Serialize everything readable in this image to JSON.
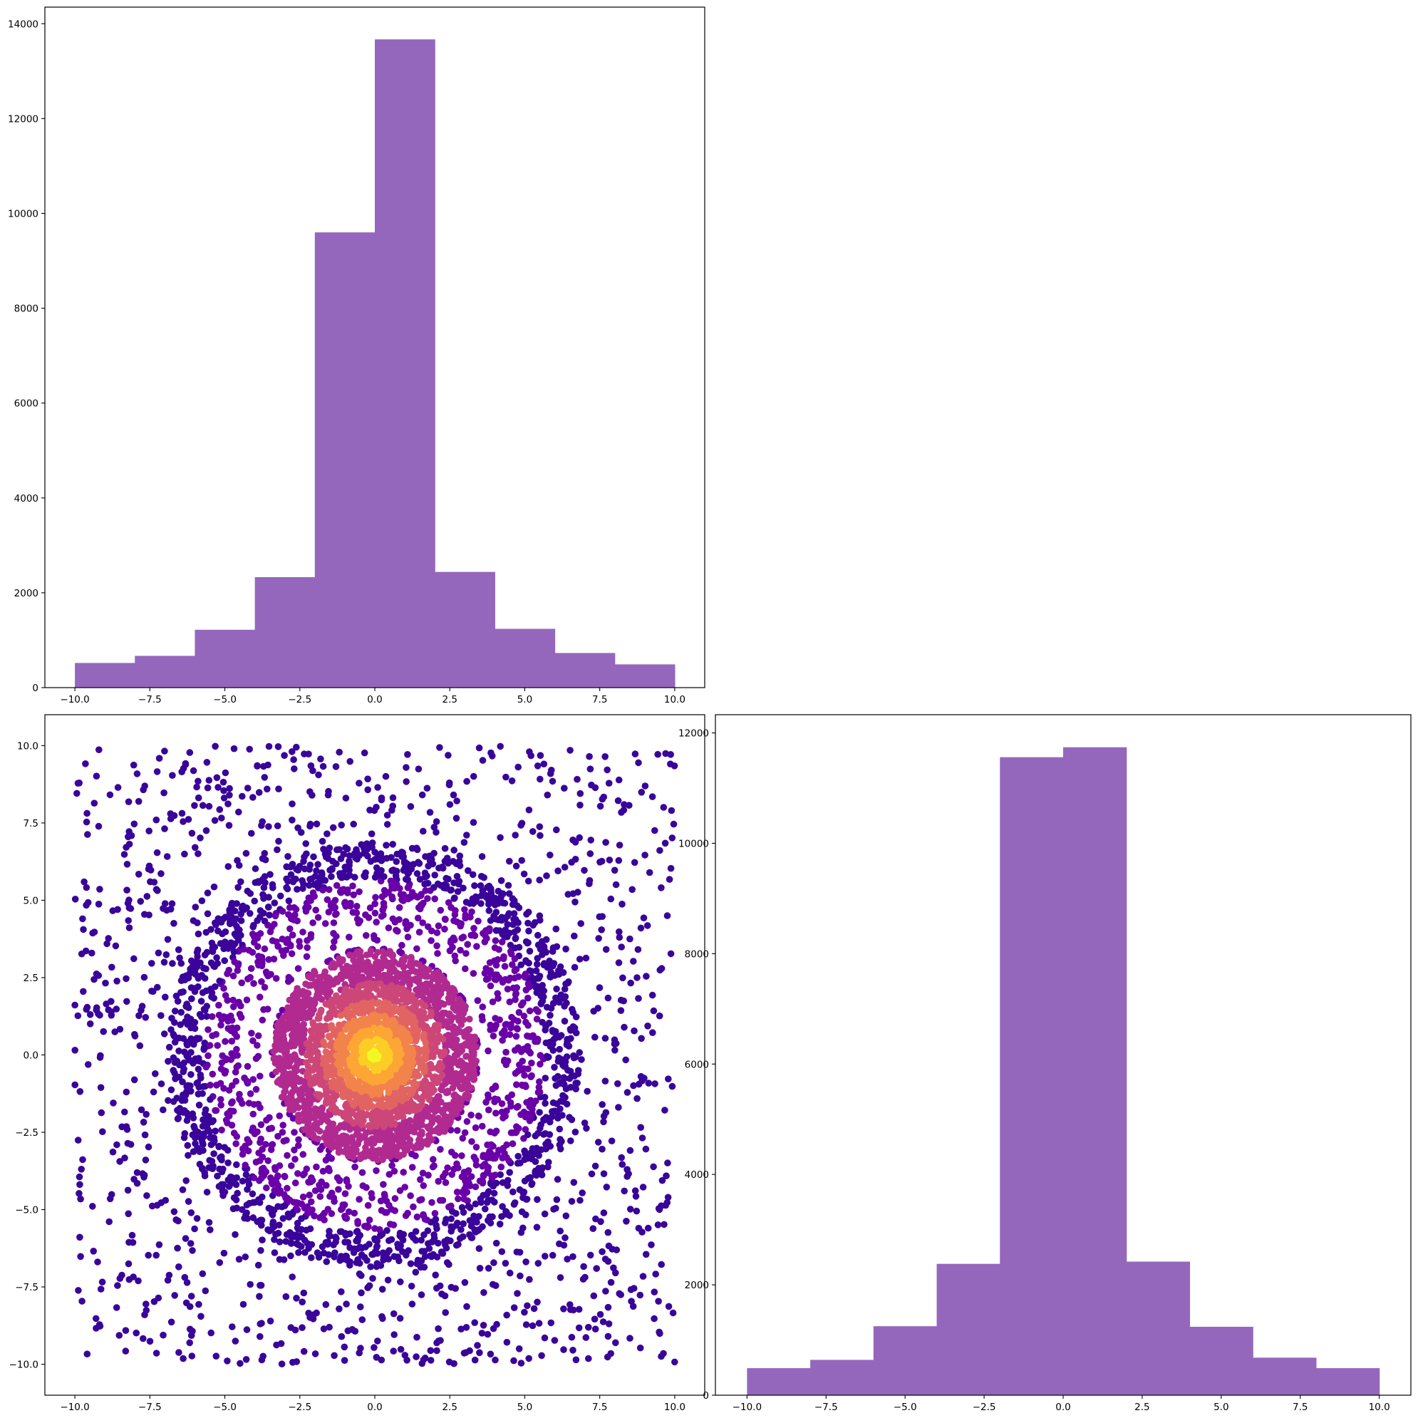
{
  "figure": {
    "background": "#ffffff"
  },
  "chart_data": [
    {
      "id": "hist_x",
      "type": "bar",
      "panel": "top-left",
      "title": "",
      "xlabel": "",
      "ylabel": "",
      "bar_color": "#9467bd",
      "bin_edges": [
        -10,
        -8,
        -6,
        -4,
        -2,
        0,
        2,
        4,
        6,
        8,
        10
      ],
      "values": [
        520,
        670,
        1220,
        2330,
        9600,
        13670,
        2440,
        1240,
        730,
        490
      ],
      "xlim": [
        -11,
        11
      ],
      "ylim": [
        0,
        14350
      ],
      "xticks": [
        -10,
        -7.5,
        -5,
        -2.5,
        0,
        2.5,
        5,
        7.5,
        10
      ],
      "xtick_labels": [
        "−10.0",
        "−7.5",
        "−5.0",
        "−2.5",
        "0.0",
        "2.5",
        "5.0",
        "7.5",
        "10.0"
      ],
      "yticks": [
        0,
        2000,
        4000,
        6000,
        8000,
        10000,
        12000,
        14000
      ],
      "ytick_labels": [
        "0",
        "2000",
        "4000",
        "6000",
        "8000",
        "10000",
        "12000",
        "14000"
      ],
      "grid": false
    },
    {
      "id": "hist_y",
      "type": "bar",
      "panel": "bottom-right",
      "title": "",
      "xlabel": "",
      "ylabel": "",
      "bar_color": "#9467bd",
      "bin_edges": [
        -10,
        -8,
        -6,
        -4,
        -2,
        0,
        2,
        4,
        6,
        8,
        10
      ],
      "values": [
        490,
        640,
        1250,
        2380,
        11560,
        11740,
        2420,
        1240,
        680,
        490
      ],
      "xlim": [
        -11,
        11
      ],
      "ylim": [
        0,
        12330
      ],
      "xticks": [
        -10,
        -7.5,
        -5,
        -2.5,
        0,
        2.5,
        5,
        7.5,
        10
      ],
      "xtick_labels": [
        "−10.0",
        "−7.5",
        "−5.0",
        "−2.5",
        "0.0",
        "2.5",
        "5.0",
        "7.5",
        "10.0"
      ],
      "yticks": [
        0,
        2000,
        4000,
        6000,
        8000,
        10000,
        12000
      ],
      "ytick_labels": [
        "0",
        "2000",
        "4000",
        "6000",
        "8000",
        "10000",
        "12000"
      ],
      "grid": false
    },
    {
      "id": "scatter_xy",
      "type": "scatter",
      "panel": "bottom-left",
      "title": "",
      "xlabel": "",
      "ylabel": "",
      "color_map": "plasma (colored by point density)",
      "point_colors": [
        "#0d0887",
        "#3a049a",
        "#6a00a8",
        "#900da4",
        "#b12a90",
        "#cc4778",
        "#e16462",
        "#f2844b",
        "#fca636",
        "#fcce25",
        "#f0f921"
      ],
      "distribution": {
        "x_range": [
          -10,
          10
        ],
        "y_range": [
          -10,
          10
        ],
        "center": [
          0,
          0
        ],
        "dense_core_radius": 3.5,
        "middle_ring_radius": 7,
        "note_counts": "approx. 40000 total points; sparse uniform background, denser ring within r~7, very dense core within r~3.5"
      },
      "xlim": [
        -11,
        11
      ],
      "ylim": [
        -11,
        11
      ],
      "xticks": [
        -10,
        -7.5,
        -5,
        -2.5,
        0,
        2.5,
        5,
        7.5,
        10
      ],
      "xtick_labels": [
        "−10.0",
        "−7.5",
        "−5.0",
        "−2.5",
        "0.0",
        "2.5",
        "5.0",
        "7.5",
        "10.0"
      ],
      "yticks": [
        -10,
        -7.5,
        -5,
        -2.5,
        0,
        2.5,
        5,
        7.5,
        10
      ],
      "ytick_labels": [
        "−10.0",
        "−7.5",
        "−5.0",
        "−2.5",
        "0.0",
        "2.5",
        "5.0",
        "7.5",
        "10.0"
      ],
      "grid": false
    }
  ]
}
